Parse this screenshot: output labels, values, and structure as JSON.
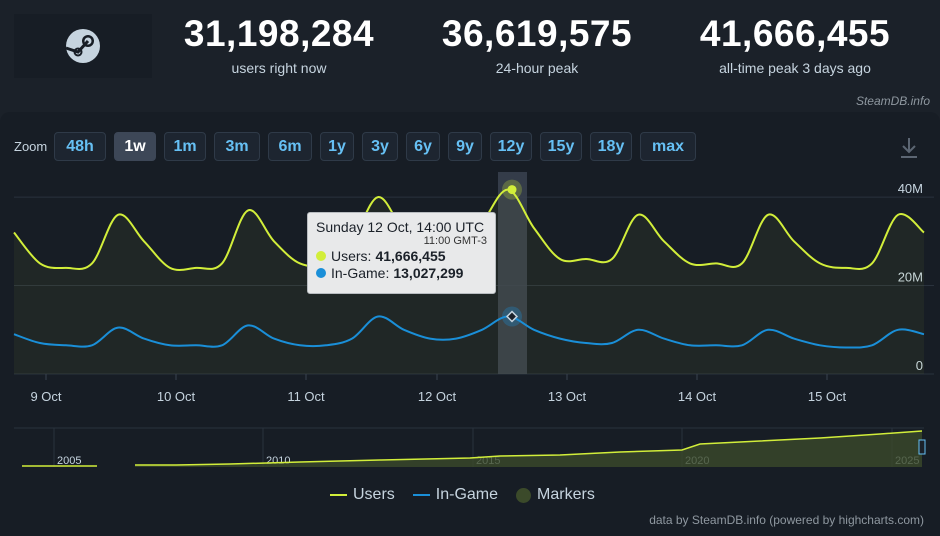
{
  "stats": [
    {
      "value": "31,198,284",
      "label": "users right now"
    },
    {
      "value": "36,619,575",
      "label": "24-hour peak"
    },
    {
      "value": "41,666,455",
      "label": "all-time peak 3 days ago"
    }
  ],
  "credit_top": "SteamDB.info",
  "zoom": {
    "label": "Zoom",
    "buttons": [
      "48h",
      "1w",
      "1m",
      "3m",
      "6m",
      "1y",
      "3y",
      "6y",
      "9y",
      "12y",
      "15y",
      "18y",
      "max"
    ],
    "active": "1w"
  },
  "tooltip": {
    "title": "Sunday 12 Oct, 14:00 UTC",
    "subtitle": "11:00 GMT-3",
    "users_label": "Users:",
    "users_value": "41,666,455",
    "ingame_label": "In-Game:",
    "ingame_value": "13,027,299"
  },
  "legend": {
    "users": "Users",
    "ingame": "In-Game",
    "markers": "Markers"
  },
  "credit_bottom": "data by SteamDB.info (powered by highcharts.com)",
  "colors": {
    "users": "#d2ee3a",
    "ingame": "#1a8fd8",
    "markers": "#3b4a2a",
    "accent": "#66c0f4"
  },
  "chart_data": {
    "type": "line",
    "x_labels": [
      "9 Oct",
      "10 Oct",
      "11 Oct",
      "12 Oct",
      "13 Oct",
      "14 Oct",
      "15 Oct"
    ],
    "y_labels": [
      "0",
      "20M",
      "40M"
    ],
    "ylim": [
      0,
      45000000
    ],
    "series": [
      {
        "name": "Users",
        "values": [
          32,
          25,
          24,
          25,
          36,
          30,
          24,
          24,
          25,
          37,
          30,
          25,
          25,
          30,
          40,
          32,
          26,
          26,
          34,
          41.7,
          33,
          26,
          26,
          26,
          36,
          30,
          25,
          25,
          25,
          36,
          30,
          25,
          24,
          25,
          36,
          32
        ],
        "unit": "M"
      },
      {
        "name": "In-Game",
        "values": [
          9,
          7,
          6.5,
          6.5,
          10.5,
          8,
          6.5,
          6.5,
          6.5,
          11,
          8,
          6.5,
          6.5,
          8,
          13,
          10,
          8,
          8,
          10,
          13,
          10,
          8,
          7,
          7,
          10,
          8,
          6.5,
          6.5,
          6.5,
          10,
          8,
          6.5,
          6,
          6.5,
          10,
          9
        ],
        "unit": "M"
      }
    ],
    "navigator_labels": [
      "2005",
      "2010",
      "2015",
      "2020",
      "2025"
    ]
  }
}
